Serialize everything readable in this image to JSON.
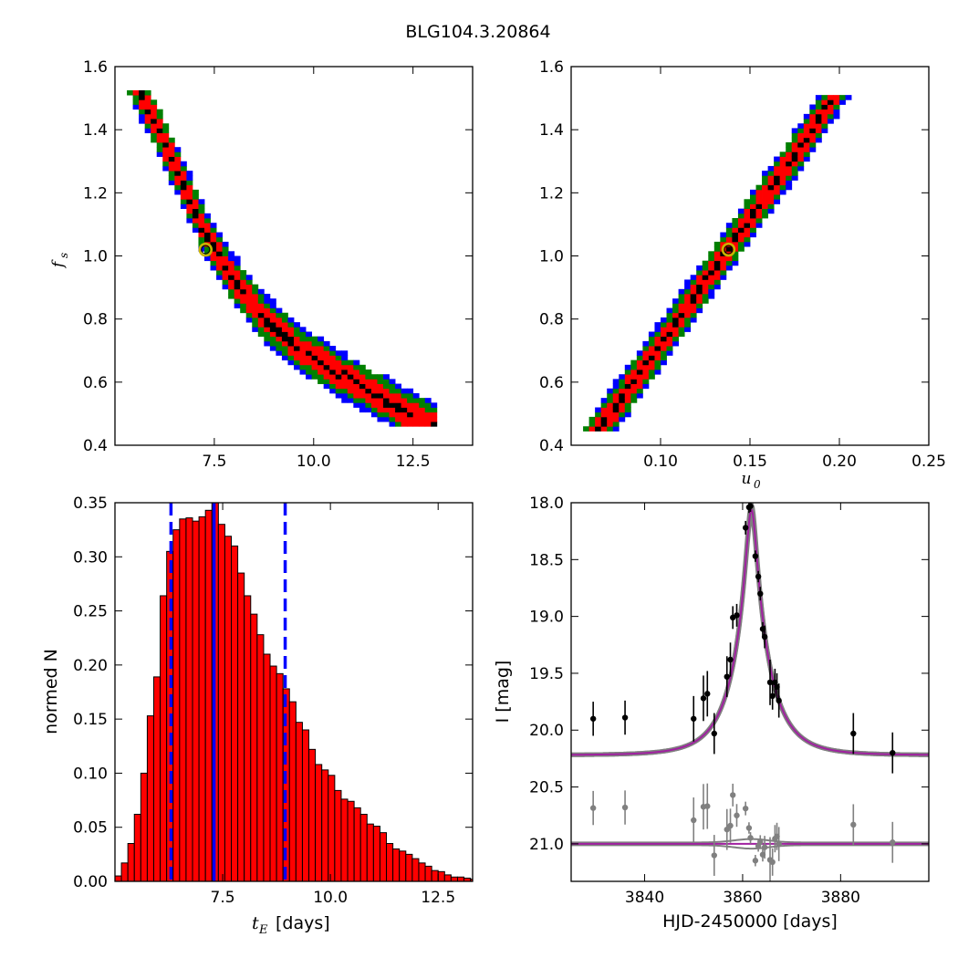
{
  "figure": {
    "title": "BLG104.3.20864"
  },
  "chart_data": [
    {
      "id": "fs_vs_tE",
      "type": "heatmap",
      "xlabel": "",
      "ylabel": "f_s",
      "ylabel_display": "f",
      "ylabel_sub": "s",
      "xlim": [
        5.0,
        14.0
      ],
      "ylim": [
        0.4,
        1.6
      ],
      "xticks": [
        7.5,
        10.0,
        12.5
      ],
      "xtick_labels": [
        "7.5",
        "10.0",
        "12.5"
      ],
      "yticks": [
        0.4,
        0.6,
        0.8,
        1.0,
        1.2,
        1.4,
        1.6
      ],
      "ytick_labels": [
        "0.4",
        "0.6",
        "0.8",
        "1.0",
        "1.2",
        "1.4",
        "1.6"
      ],
      "ridge": {
        "x": [
          5.7,
          6.1,
          6.6,
          7.2,
          7.9,
          8.7,
          9.6,
          10.6,
          11.7,
          12.6
        ],
        "y": [
          1.5,
          1.4,
          1.26,
          1.09,
          0.94,
          0.81,
          0.71,
          0.63,
          0.55,
          0.49
        ]
      },
      "best_fit": {
        "x": 7.28,
        "y": 1.02
      },
      "level_colors": [
        "#0000ff",
        "#008000",
        "#ff0000",
        "#000000"
      ],
      "best_fit_color": "#c8b400"
    },
    {
      "id": "fs_vs_u0",
      "type": "heatmap",
      "xlabel": "u_0",
      "xlabel_display": "u",
      "xlabel_sub": "0",
      "ylabel": "",
      "xlim": [
        0.05,
        0.25
      ],
      "ylim": [
        0.4,
        1.6
      ],
      "xticks": [
        0.1,
        0.15,
        0.2,
        0.25
      ],
      "xtick_labels": [
        "0.10",
        "0.15",
        "0.20",
        "0.25"
      ],
      "yticks": [
        0.4,
        0.6,
        0.8,
        1.0,
        1.2,
        1.4,
        1.6
      ],
      "ytick_labels": [
        "0.4",
        "0.6",
        "0.8",
        "1.0",
        "1.2",
        "1.4",
        "1.6"
      ],
      "ridge": {
        "x": [
          0.068,
          0.085,
          0.105,
          0.125,
          0.14,
          0.155,
          0.17,
          0.185,
          0.195
        ],
        "y": [
          0.47,
          0.6,
          0.76,
          0.92,
          1.04,
          1.16,
          1.28,
          1.4,
          1.49
        ]
      },
      "best_fit": {
        "x": 0.138,
        "y": 1.02
      },
      "level_colors": [
        "#0000ff",
        "#008000",
        "#ff0000",
        "#000000"
      ],
      "best_fit_color": "#c8b400"
    },
    {
      "id": "tE_histogram",
      "type": "bar",
      "xlabel": "t_E [days]",
      "xlabel_display": "t",
      "xlabel_sub": "E",
      "xlabel_rest": "[days]",
      "ylabel": "normed N",
      "xlim": [
        5.0,
        13.3
      ],
      "ylim": [
        0.0,
        0.35
      ],
      "xticks": [
        7.5,
        10.0,
        12.5
      ],
      "xtick_labels": [
        "7.5",
        "10.0",
        "12.5"
      ],
      "yticks": [
        0.0,
        0.05,
        0.1,
        0.15,
        0.2,
        0.25,
        0.3,
        0.35
      ],
      "ytick_labels": [
        "0.00",
        "0.05",
        "0.10",
        "0.15",
        "0.20",
        "0.25",
        "0.30",
        "0.35"
      ],
      "bin_start": 5.0,
      "bin_width": 0.15,
      "values": [
        0.005,
        0.017,
        0.035,
        0.062,
        0.1,
        0.153,
        0.189,
        0.264,
        0.305,
        0.325,
        0.335,
        0.336,
        0.333,
        0.337,
        0.343,
        0.353,
        0.33,
        0.319,
        0.31,
        0.285,
        0.264,
        0.247,
        0.228,
        0.21,
        0.199,
        0.192,
        0.178,
        0.166,
        0.147,
        0.14,
        0.122,
        0.108,
        0.103,
        0.098,
        0.084,
        0.076,
        0.074,
        0.068,
        0.062,
        0.053,
        0.051,
        0.045,
        0.035,
        0.03,
        0.028,
        0.025,
        0.021,
        0.017,
        0.014,
        0.01,
        0.009,
        0.006,
        0.004,
        0.004,
        0.003,
        0.002
      ],
      "bar_color": "#ff0000",
      "vlines": [
        {
          "x": 6.3,
          "style": "dashed"
        },
        {
          "x": 7.3,
          "style": "solid"
        },
        {
          "x": 8.95,
          "style": "dashed"
        }
      ],
      "vline_color": "#0000ff"
    },
    {
      "id": "light_curve",
      "type": "scatter",
      "xlabel": "HJD-2450000 [days]",
      "ylabel": "I [mag]",
      "xlim": [
        3825,
        3898
      ],
      "ylim": [
        21.33,
        18.0
      ],
      "xticks": [
        3840,
        3860,
        3880
      ],
      "xtick_labels": [
        "3840",
        "3860",
        "3880"
      ],
      "yticks": [
        18.0,
        18.5,
        19.0,
        19.5,
        20.0,
        20.5,
        21.0
      ],
      "ytick_labels": [
        "18.0",
        "18.5",
        "19.0",
        "19.5",
        "20.0",
        "20.5",
        "21.0"
      ],
      "model": {
        "t0": 3861.8,
        "tE": 7.3,
        "u0": 0.138,
        "baseline": 20.22
      },
      "residual_offset": 21.0,
      "data": {
        "x": [
          3829.5,
          3836.0,
          3850.0,
          3852.0,
          3852.8,
          3854.2,
          3856.8,
          3857.5,
          3858.0,
          3858.8,
          3860.6,
          3861.3,
          3861.6,
          3862.6,
          3863.2,
          3863.6,
          3864.1,
          3864.5,
          3865.6,
          3866.1,
          3866.6,
          3867.0,
          3867.4,
          3882.6,
          3890.6
        ],
        "y": [
          19.9,
          19.89,
          19.9,
          19.72,
          19.68,
          20.03,
          19.53,
          19.38,
          19.01,
          18.99,
          18.22,
          18.04,
          18.03,
          18.47,
          18.65,
          18.8,
          19.11,
          19.18,
          19.58,
          19.7,
          19.58,
          19.62,
          19.74,
          20.03,
          20.2
        ],
        "err": [
          0.15,
          0.15,
          0.2,
          0.2,
          0.2,
          0.18,
          0.18,
          0.15,
          0.1,
          0.1,
          0.06,
          0.05,
          0.05,
          0.05,
          0.05,
          0.06,
          0.06,
          0.1,
          0.2,
          0.12,
          0.12,
          0.12,
          0.15,
          0.18,
          0.18
        ]
      },
      "model_color": "#a020a0",
      "band_color": "#808080",
      "data_color": "#000000",
      "residual_color": "#808080"
    }
  ]
}
